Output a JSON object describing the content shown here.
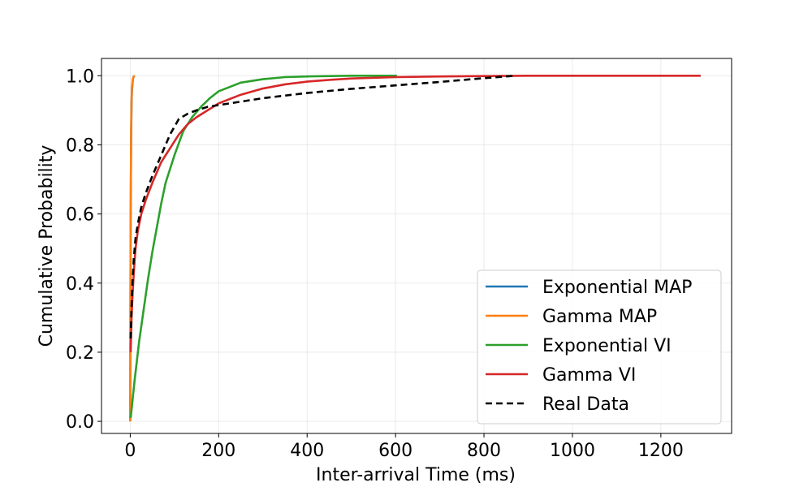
{
  "chart_data": {
    "type": "line",
    "xlabel": "Inter-arrival Time (ms)",
    "ylabel": "Cumulative Probability",
    "xlim": [
      -65,
      1360
    ],
    "ylim": [
      -0.035,
      1.05
    ],
    "xticks": [
      0,
      200,
      400,
      600,
      800,
      1000,
      1200
    ],
    "yticks": [
      0.0,
      0.2,
      0.4,
      0.6,
      0.8,
      1.0
    ],
    "xtick_labels": [
      "0",
      "200",
      "400",
      "600",
      "800",
      "1000",
      "1200"
    ],
    "ytick_labels": [
      "0.0",
      "0.2",
      "0.4",
      "0.6",
      "0.8",
      "1.0"
    ],
    "grid": true,
    "legend_position": "lower-right",
    "series": [
      {
        "name": "Exponential MAP",
        "color": "#1f77b4",
        "style": "solid",
        "x": [
          0,
          0.5,
          1,
          2,
          3,
          4,
          6,
          8,
          10
        ],
        "y": [
          0.0,
          0.35,
          0.58,
          0.82,
          0.92,
          0.96,
          0.99,
          0.998,
          1.0
        ]
      },
      {
        "name": "Gamma MAP",
        "color": "#ff7f0e",
        "style": "solid",
        "x": [
          0,
          0.5,
          1,
          2,
          3,
          4,
          6,
          8,
          10
        ],
        "y": [
          0.0,
          0.37,
          0.6,
          0.84,
          0.93,
          0.97,
          0.99,
          0.998,
          1.0
        ]
      },
      {
        "name": "Exponential VI",
        "color": "#2ca02c",
        "style": "solid",
        "x": [
          1,
          10,
          20,
          30,
          40,
          50,
          60,
          70,
          80,
          100,
          120,
          140,
          160,
          180,
          200,
          250,
          300,
          350,
          400,
          500,
          603
        ],
        "y": [
          0.01,
          0.12,
          0.23,
          0.32,
          0.41,
          0.49,
          0.56,
          0.63,
          0.69,
          0.77,
          0.84,
          0.88,
          0.91,
          0.935,
          0.955,
          0.98,
          0.99,
          0.996,
          0.998,
          1.0,
          1.0
        ]
      },
      {
        "name": "Gamma VI",
        "color": "#d62728",
        "style": "solid",
        "x": [
          1,
          3,
          5,
          8,
          12,
          17,
          25,
          35,
          50,
          70,
          90,
          110,
          130,
          150,
          175,
          200,
          250,
          300,
          350,
          400,
          450,
          500,
          600,
          700,
          800,
          900,
          1000,
          1100,
          1200,
          1290
        ],
        "y": [
          0.2,
          0.3,
          0.36,
          0.43,
          0.5,
          0.55,
          0.6,
          0.64,
          0.69,
          0.75,
          0.79,
          0.83,
          0.86,
          0.88,
          0.9,
          0.92,
          0.945,
          0.963,
          0.975,
          0.983,
          0.988,
          0.992,
          0.996,
          0.998,
          0.999,
          1.0,
          1.0,
          1.0,
          1.0,
          1.0
        ]
      },
      {
        "name": "Real Data",
        "color": "#000000",
        "style": "dashed",
        "x": [
          1,
          3,
          5,
          8,
          12,
          17,
          25,
          35,
          50,
          70,
          90,
          110,
          130,
          150,
          175,
          200,
          250,
          300,
          400,
          500,
          600,
          700,
          800,
          870
        ],
        "y": [
          0.24,
          0.33,
          0.4,
          0.47,
          0.53,
          0.57,
          0.62,
          0.66,
          0.71,
          0.77,
          0.83,
          0.875,
          0.89,
          0.9,
          0.91,
          0.915,
          0.925,
          0.935,
          0.95,
          0.962,
          0.972,
          0.982,
          0.993,
          1.0
        ]
      }
    ]
  }
}
